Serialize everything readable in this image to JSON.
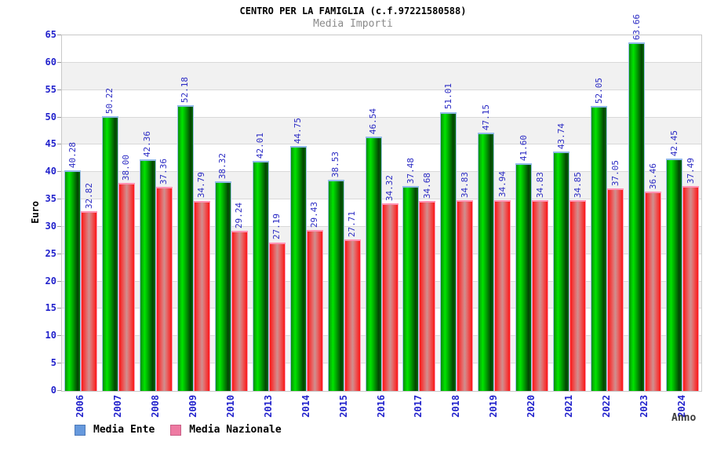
{
  "header": {
    "title": "CENTRO PER LA FAMIGLIA (c.f.97221580588)",
    "subtitle": "Media Importi"
  },
  "legend": {
    "items": [
      {
        "label": "Media Ente",
        "fill": "#6699dd",
        "border": "#4d79b8"
      },
      {
        "label": "Media Nazionale",
        "fill": "#ee7aa2",
        "border": "#c95f86"
      }
    ]
  },
  "colors": {
    "axis_text": "#2222cc",
    "value_text": "#2b2bc4",
    "band_gray": "#f1f1f1",
    "gridline": "#d9d9d9",
    "green_bar_main": "#00e400",
    "red_bar_main": "#fb1717",
    "green_cap": "#8fb8e8",
    "red_cap": "#ff93b4"
  },
  "chart_data": {
    "type": "bar",
    "title": "CENTRO PER LA FAMIGLIA (c.f.97221580588)",
    "subtitle": "Media Importi",
    "categories": [
      "2006",
      "2007",
      "2008",
      "2009",
      "2010",
      "2013",
      "2014",
      "2015",
      "2016",
      "2017",
      "2018",
      "2019",
      "2020",
      "2021",
      "2022",
      "2023",
      "2024"
    ],
    "series": [
      {
        "name": "Media Ente",
        "color": "green",
        "values": [
          40.28,
          50.22,
          42.36,
          52.18,
          38.32,
          42.01,
          44.75,
          38.53,
          46.54,
          37.48,
          51.01,
          47.15,
          41.6,
          43.74,
          52.05,
          63.66,
          42.45
        ]
      },
      {
        "name": "Media Nazionale",
        "color": "red",
        "values": [
          32.82,
          38.0,
          37.36,
          34.79,
          29.24,
          27.19,
          29.43,
          27.71,
          34.32,
          34.68,
          34.83,
          34.94,
          34.83,
          34.85,
          37.05,
          36.46,
          37.49
        ]
      }
    ],
    "xlabel": "Anno",
    "ylabel": "Euro",
    "ylim": [
      0,
      65
    ],
    "ytick_step": 5,
    "grid": true,
    "value_decimals": 2,
    "legend_position": "bottom-left"
  }
}
